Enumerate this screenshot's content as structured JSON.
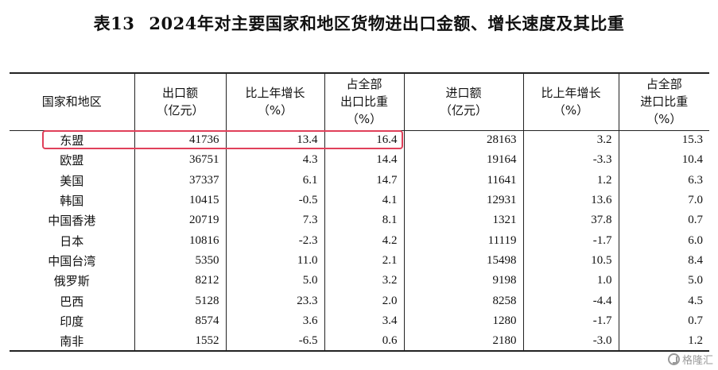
{
  "title": {
    "number": "表13",
    "text": "2024年对主要国家和地区货物进出口金额、增长速度及其比重"
  },
  "table": {
    "headers": {
      "region": "国家和地区",
      "export_amount": [
        "出口额",
        "（亿元）"
      ],
      "export_growth": [
        "比上年增长",
        "（%）"
      ],
      "export_share": [
        "占全部",
        "出口比重",
        "（%）"
      ],
      "import_amount": [
        "进口额",
        "（亿元）"
      ],
      "import_growth": [
        "比上年增长",
        "（%）"
      ],
      "import_share": [
        "占全部",
        "进口比重",
        "（%）"
      ]
    },
    "rows": [
      [
        "东盟",
        "41736",
        "13.4",
        "16.4",
        "28163",
        "3.2",
        "15.3"
      ],
      [
        "欧盟",
        "36751",
        "4.3",
        "14.4",
        "19164",
        "-3.3",
        "10.4"
      ],
      [
        "美国",
        "37337",
        "6.1",
        "14.7",
        "11641",
        "1.2",
        "6.3"
      ],
      [
        "韩国",
        "10415",
        "-0.5",
        "4.1",
        "12931",
        "13.6",
        "7.0"
      ],
      [
        "中国香港",
        "20719",
        "7.3",
        "8.1",
        "1321",
        "37.8",
        "0.7"
      ],
      [
        "日本",
        "10816",
        "-2.3",
        "4.2",
        "11119",
        "-1.7",
        "6.0"
      ],
      [
        "中国台湾",
        "5350",
        "11.0",
        "2.1",
        "15498",
        "10.5",
        "8.4"
      ],
      [
        "俄罗斯",
        "8212",
        "5.0",
        "3.2",
        "9198",
        "1.0",
        "5.0"
      ],
      [
        "巴西",
        "5128",
        "23.3",
        "2.0",
        "8258",
        "-4.4",
        "4.5"
      ],
      [
        "印度",
        "8574",
        "3.6",
        "3.4",
        "1280",
        "-1.7",
        "0.7"
      ],
      [
        "南非",
        "1552",
        "-6.5",
        "0.6",
        "2180",
        "-3.0",
        "1.2"
      ]
    ],
    "highlighted_row": "东盟",
    "highlight_color": "#e0405a"
  },
  "watermark": {
    "icon": "gelonghui-logo-icon",
    "text": "格隆汇"
  }
}
